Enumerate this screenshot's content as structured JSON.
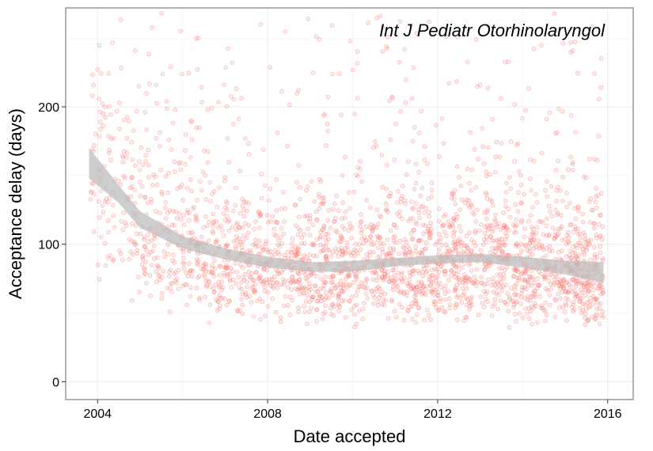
{
  "chart_data": {
    "type": "scatter",
    "annotation": "Int J Pediatr Otorhinolaryngol",
    "xlabel": "Date accepted",
    "ylabel": "Acceptance delay (days)",
    "xlim": [
      2003.25,
      2016.6
    ],
    "ylim": [
      -13,
      272
    ],
    "x_ticks": [
      2004,
      2008,
      2012,
      2016
    ],
    "x_tick_labels": [
      "2004",
      "2008",
      "2012",
      "2016"
    ],
    "y_ticks": [
      0,
      100,
      200
    ],
    "y_tick_labels": [
      "0",
      "100",
      "200"
    ],
    "grid": true,
    "point_color": "#f8766d",
    "band_color": "#bdbdbd",
    "point_count": 2600,
    "x_range": [
      2003.8,
      2015.9
    ],
    "smooth": {
      "x": [
        2003.8,
        2004.5,
        2005,
        2006,
        2007,
        2008,
        2009,
        2010,
        2011,
        2012,
        2013,
        2014,
        2015,
        2015.9
      ],
      "y": [
        158,
        136,
        118,
        101,
        93,
        87,
        84,
        84,
        87,
        89,
        90,
        87,
        83,
        79
      ],
      "lower": [
        148,
        130,
        112,
        97,
        89,
        83,
        80,
        80,
        84,
        86,
        87,
        83,
        78,
        72
      ],
      "upper": [
        170,
        143,
        124,
        106,
        97,
        91,
        87,
        88,
        90,
        92,
        93,
        91,
        88,
        87
      ]
    }
  }
}
